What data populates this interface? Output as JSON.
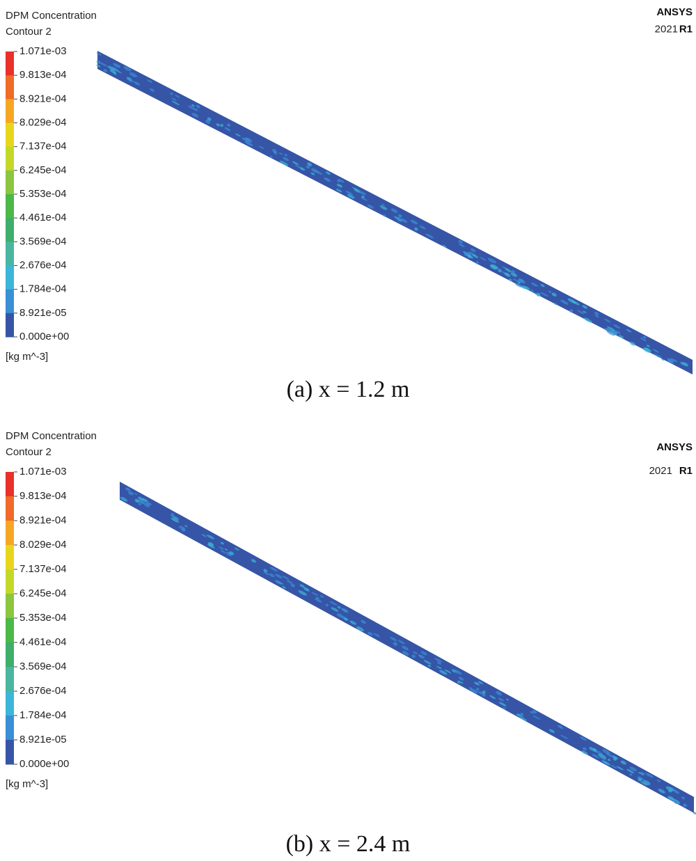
{
  "panels": [
    {
      "legend_title": "DPM Concentration",
      "legend_subtitle": "Contour 2",
      "labels": [
        "1.071e-03",
        "9.813e-04",
        "8.921e-04",
        "8.029e-04",
        "7.137e-04",
        "6.245e-04",
        "5.353e-04",
        "4.461e-04",
        "3.569e-04",
        "2.676e-04",
        "1.784e-04",
        "8.921e-05",
        "0.000e+00"
      ],
      "unit": "[kg m^-3]",
      "logo": "ANSYS",
      "version": "2021",
      "release": "R1",
      "caption": "(a) x = 1.2 m"
    },
    {
      "legend_title": "DPM Concentration",
      "legend_subtitle": "Contour 2",
      "labels": [
        "1.071e-03",
        "9.813e-04",
        "8.921e-04",
        "8.029e-04",
        "7.137e-04",
        "6.245e-04",
        "5.353e-04",
        "4.461e-04",
        "3.569e-04",
        "2.676e-04",
        "1.784e-04",
        "8.921e-05",
        "0.000e+00"
      ],
      "unit": "[kg m^-3]",
      "logo": "ANSYS",
      "version": "2021",
      "release": "R1",
      "caption": "(b) x = 2.4 m"
    }
  ],
  "colors": [
    "#e8312a",
    "#f06a28",
    "#f5a623",
    "#e8d61c",
    "#c4d82a",
    "#8cc63f",
    "#4cb848",
    "#3fae6b",
    "#4bb5a0",
    "#3cb6d8",
    "#3a8fd6",
    "#3655a7"
  ]
}
